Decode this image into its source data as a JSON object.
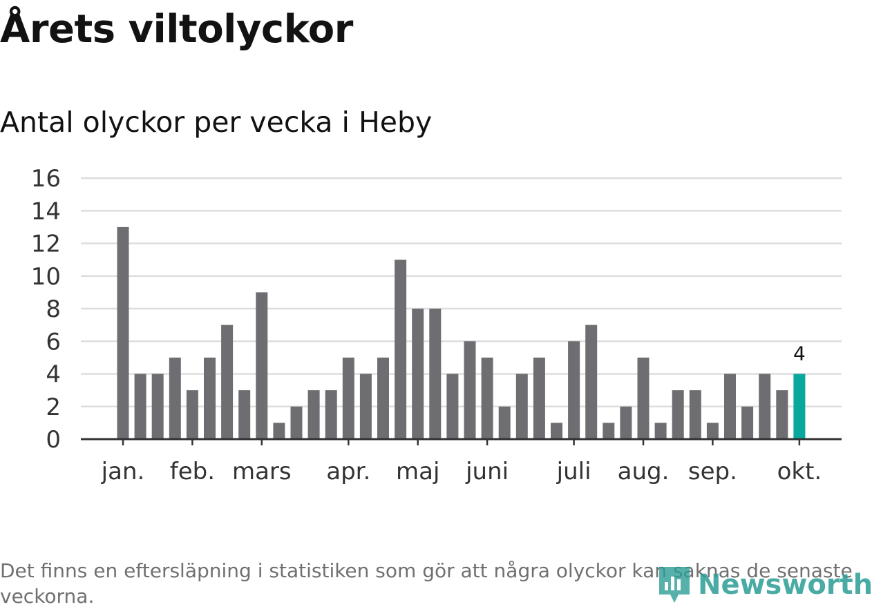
{
  "header": {
    "title": "Årets viltolyckor",
    "subtitle": "Antal olyckor per vecka i Heby"
  },
  "footnote": "Det finns en eftersläpning i statistiken som gör att några olyckor kan saknas de senaste veckorna.",
  "brand": {
    "name": "Newsworthy",
    "icon": "newsworthy-logo-icon",
    "color": "#2a9d95"
  },
  "chart_data": {
    "type": "bar",
    "title": "Antal olyckor per vecka i Heby",
    "xlabel": "",
    "ylabel": "",
    "ylim": [
      0,
      16
    ],
    "yticks": [
      0,
      2,
      4,
      6,
      8,
      10,
      12,
      14,
      16
    ],
    "grid": true,
    "values": [
      13,
      4,
      4,
      5,
      3,
      5,
      7,
      3,
      9,
      1,
      2,
      3,
      3,
      5,
      4,
      5,
      11,
      8,
      8,
      4,
      6,
      5,
      2,
      4,
      5,
      1,
      6,
      7,
      1,
      2,
      5,
      1,
      3,
      3,
      1,
      4,
      2,
      4,
      3,
      4
    ],
    "month_ticks": [
      {
        "label": "jan.",
        "index": 0
      },
      {
        "label": "feb.",
        "index": 4
      },
      {
        "label": "mars",
        "index": 8
      },
      {
        "label": "apr.",
        "index": 13
      },
      {
        "label": "maj",
        "index": 17
      },
      {
        "label": "juni",
        "index": 21
      },
      {
        "label": "juli",
        "index": 26
      },
      {
        "label": "aug.",
        "index": 30
      },
      {
        "label": "sep.",
        "index": 34
      },
      {
        "label": "okt.",
        "index": 39
      }
    ],
    "highlight_index": 39,
    "highlight_label": "4",
    "colors": {
      "bar": "#6e6d72",
      "highlight": "#0aa89c",
      "grid": "#dddddd",
      "axis": "#333333"
    }
  }
}
